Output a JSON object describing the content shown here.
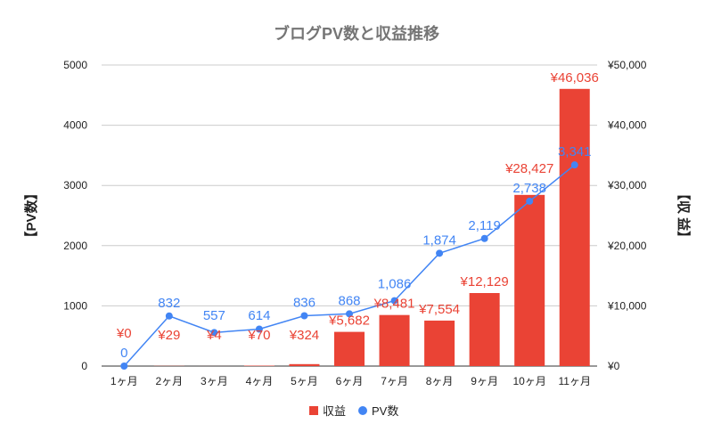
{
  "chart_data": {
    "type": "bar+line",
    "title": "ブログPV数と収益推移",
    "categories": [
      "1ヶ月",
      "2ヶ月",
      "3ヶ月",
      "4ヶ月",
      "5ヶ月",
      "6ヶ月",
      "7ヶ月",
      "8ヶ月",
      "9ヶ月",
      "10ヶ月",
      "11ヶ月"
    ],
    "series": [
      {
        "name": "収益",
        "type": "bar",
        "axis": "right",
        "color": "#ea4335",
        "values": [
          0,
          29,
          4,
          70,
          324,
          5682,
          8481,
          7554,
          12129,
          28427,
          46036
        ],
        "labels": [
          "¥0",
          "¥29",
          "¥4",
          "¥70",
          "¥324",
          "¥5,682",
          "¥8,481",
          "¥7,554",
          "¥12,129",
          "¥28,427",
          "¥46,036"
        ]
      },
      {
        "name": "PV数",
        "type": "line",
        "axis": "left",
        "color": "#4285f4",
        "values": [
          0,
          832,
          557,
          614,
          836,
          868,
          1086,
          1874,
          2119,
          2738,
          3341
        ],
        "labels": [
          "0",
          "832",
          "557",
          "614",
          "836",
          "868",
          "1,086",
          "1,874",
          "2,119",
          "2,738",
          "3,341"
        ]
      }
    ],
    "ylabel_left": "【PV数】",
    "ylabel_right": "【収 益】",
    "ylim_left": [
      0,
      5000
    ],
    "ylim_right": [
      0,
      50000
    ],
    "yticks_left": [
      "0",
      "1000",
      "2000",
      "3000",
      "4000",
      "5000"
    ],
    "yticks_right": [
      "¥0",
      "¥10,000",
      "¥20,000",
      "¥30,000",
      "¥40,000",
      "¥50,000"
    ],
    "grid": true,
    "legend": "bottom"
  }
}
